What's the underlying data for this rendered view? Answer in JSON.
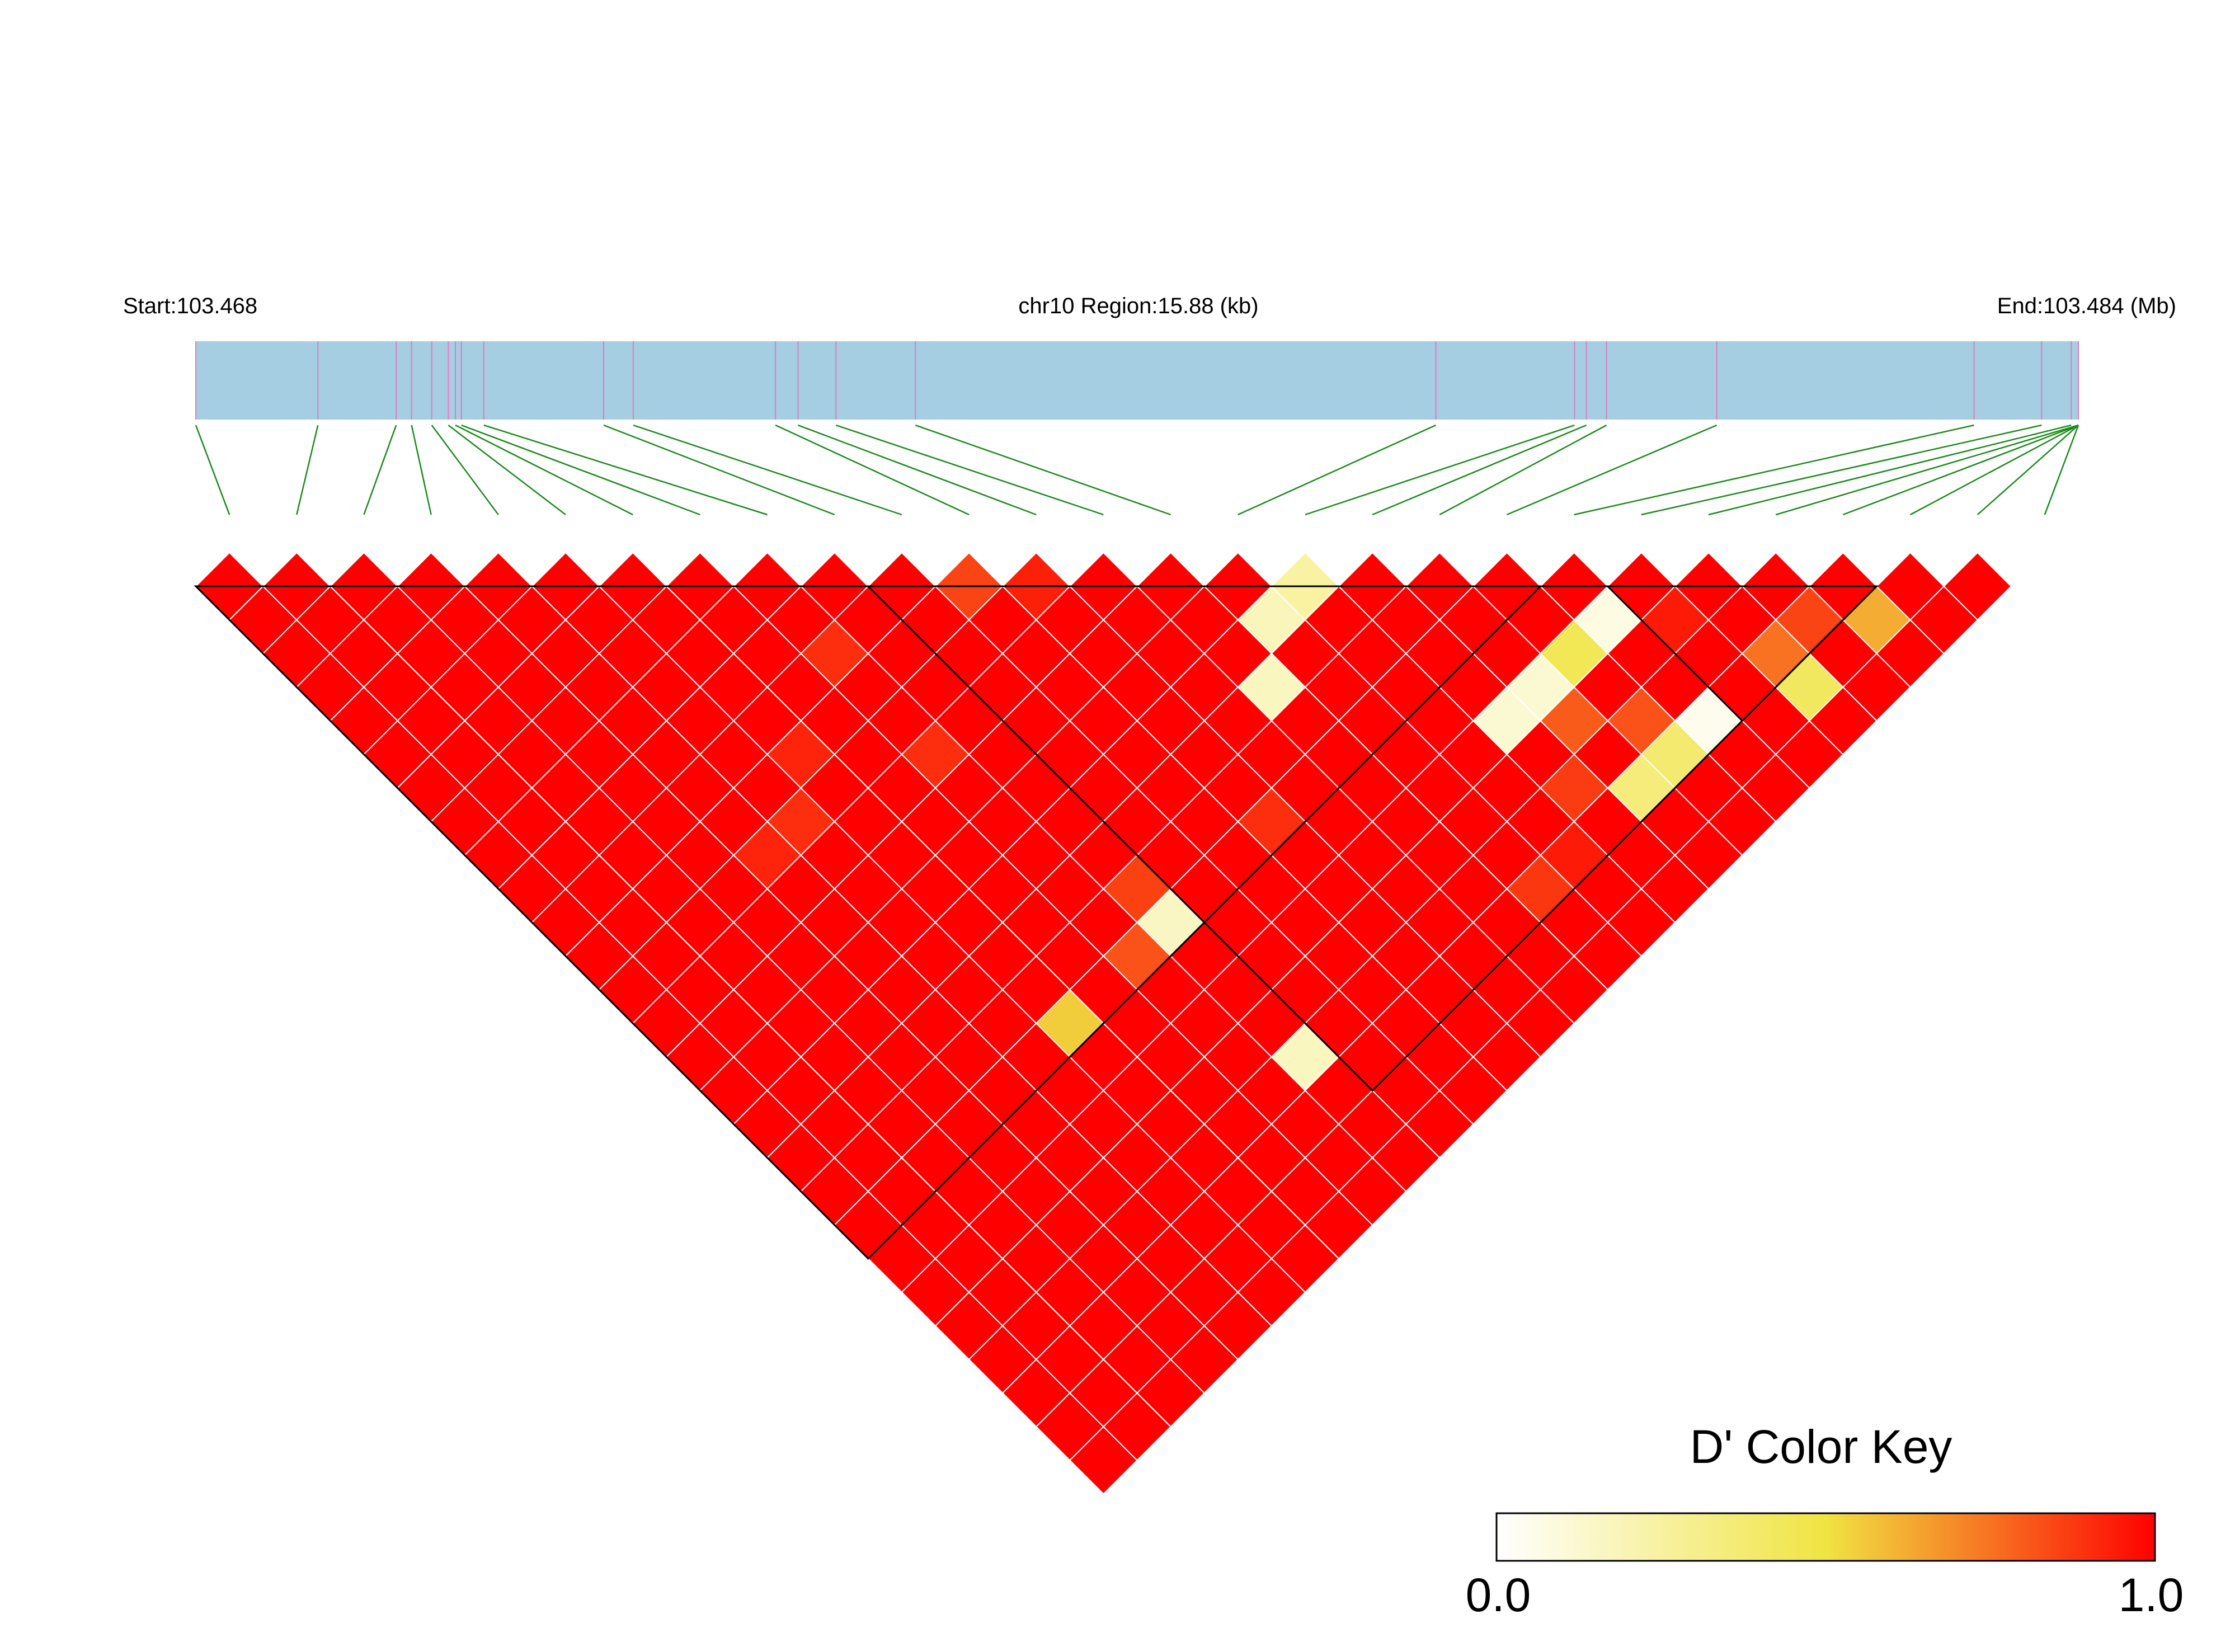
{
  "header": {
    "start_label": "Start:103.468",
    "region_label": "chr10 Region:15.88 (kb)",
    "end_label": "End:103.484 (Mb)"
  },
  "colors": {
    "region_bar": "#a6cee3",
    "snp_tick": "#e377c2",
    "connector": "#1a8a1a",
    "cell_line": "#ffffff",
    "block_outline": "#000000",
    "key_low": "#ffffff",
    "key_mid": "#f0e442",
    "key_high": "#ff0000"
  },
  "chart_data": {
    "type": "heatmap",
    "title": "",
    "metric": "D'",
    "n_snps": 28,
    "snp_positions_kb": [
      0.0,
      1.03,
      1.69,
      1.82,
      1.99,
      2.13,
      2.19,
      2.24,
      2.43,
      3.44,
      3.69,
      4.89,
      5.08,
      5.4,
      6.07,
      10.46,
      11.63,
      11.73,
      11.9,
      12.83,
      15.0,
      15.57,
      15.82,
      15.88,
      15.88,
      15.88,
      15.88,
      15.88
    ],
    "default_dprime": 1.0,
    "dprime_exceptions": [
      {
        "snp_i": 16,
        "snp_j": 17,
        "dprime": 0.25
      },
      {
        "snp_i": 15,
        "snp_j": 17,
        "dprime": 0.18
      },
      {
        "snp_i": 14,
        "snp_j": 18,
        "dprime": 0.17
      },
      {
        "snp_i": 20,
        "snp_j": 22,
        "dprime": 0.08
      },
      {
        "snp_i": 24,
        "snp_j": 26,
        "dprime": 0.62
      },
      {
        "snp_i": 19,
        "snp_j": 22,
        "dprime": 0.45
      },
      {
        "snp_i": 18,
        "snp_j": 22,
        "dprime": 0.12
      },
      {
        "snp_i": 22,
        "snp_j": 26,
        "dprime": 0.42
      },
      {
        "snp_i": 17,
        "snp_j": 22,
        "dprime": 0.12
      },
      {
        "snp_i": 20,
        "snp_j": 25,
        "dprime": 0.05
      },
      {
        "snp_i": 19,
        "snp_j": 25,
        "dprime": 0.38
      },
      {
        "snp_i": 18,
        "snp_j": 25,
        "dprime": 0.35
      },
      {
        "snp_i": 9,
        "snp_j": 20,
        "dprime": 0.16
      },
      {
        "snp_i": 9,
        "snp_j": 24,
        "dprime": 0.17
      },
      {
        "snp_i": 6,
        "snp_j": 20,
        "dprime": 0.55
      },
      {
        "snp_i": 11,
        "snp_j": 12,
        "dprime": 0.85
      },
      {
        "snp_i": 22,
        "snp_j": 25,
        "dprime": 0.75
      },
      {
        "snp_i": 18,
        "snp_j": 23,
        "dprime": 0.8
      },
      {
        "snp_i": 19,
        "snp_j": 24,
        "dprime": 0.82
      },
      {
        "snp_i": 23,
        "snp_j": 25,
        "dprime": 0.85
      },
      {
        "snp_i": 17,
        "snp_j": 24,
        "dprime": 0.87
      },
      {
        "snp_i": 15,
        "snp_j": 25,
        "dprime": 0.88
      },
      {
        "snp_i": 12,
        "snp_j": 20,
        "dprime": 0.9
      },
      {
        "snp_i": 8,
        "snp_j": 20,
        "dprime": 0.82
      },
      {
        "snp_i": 9,
        "snp_j": 19,
        "dprime": 0.86
      },
      {
        "snp_i": 8,
        "snp_j": 11,
        "dprime": 0.9
      },
      {
        "snp_i": 8,
        "snp_j": 14,
        "dprime": 0.9
      },
      {
        "snp_i": 5,
        "snp_j": 13,
        "dprime": 0.9
      },
      {
        "snp_i": 4,
        "snp_j": 13,
        "dprime": 0.92
      },
      {
        "snp_i": 6,
        "snp_j": 12,
        "dprime": 0.92
      },
      {
        "snp_i": 12,
        "snp_j": 13,
        "dprime": 0.93
      },
      {
        "snp_i": 21,
        "snp_j": 23,
        "dprime": 0.94
      },
      {
        "snp_i": 16,
        "snp_j": 25,
        "dprime": 0.94
      }
    ],
    "ld_blocks": [
      {
        "first_snp": 0,
        "last_snp": 20
      },
      {
        "first_snp": 10,
        "last_snp": 25
      },
      {
        "first_snp": 21,
        "last_snp": 25
      }
    ],
    "color_key": {
      "title": "D' Color Key",
      "min_label": "0.0",
      "max_label": "1.0",
      "range": [
        0.0,
        1.0
      ]
    }
  }
}
